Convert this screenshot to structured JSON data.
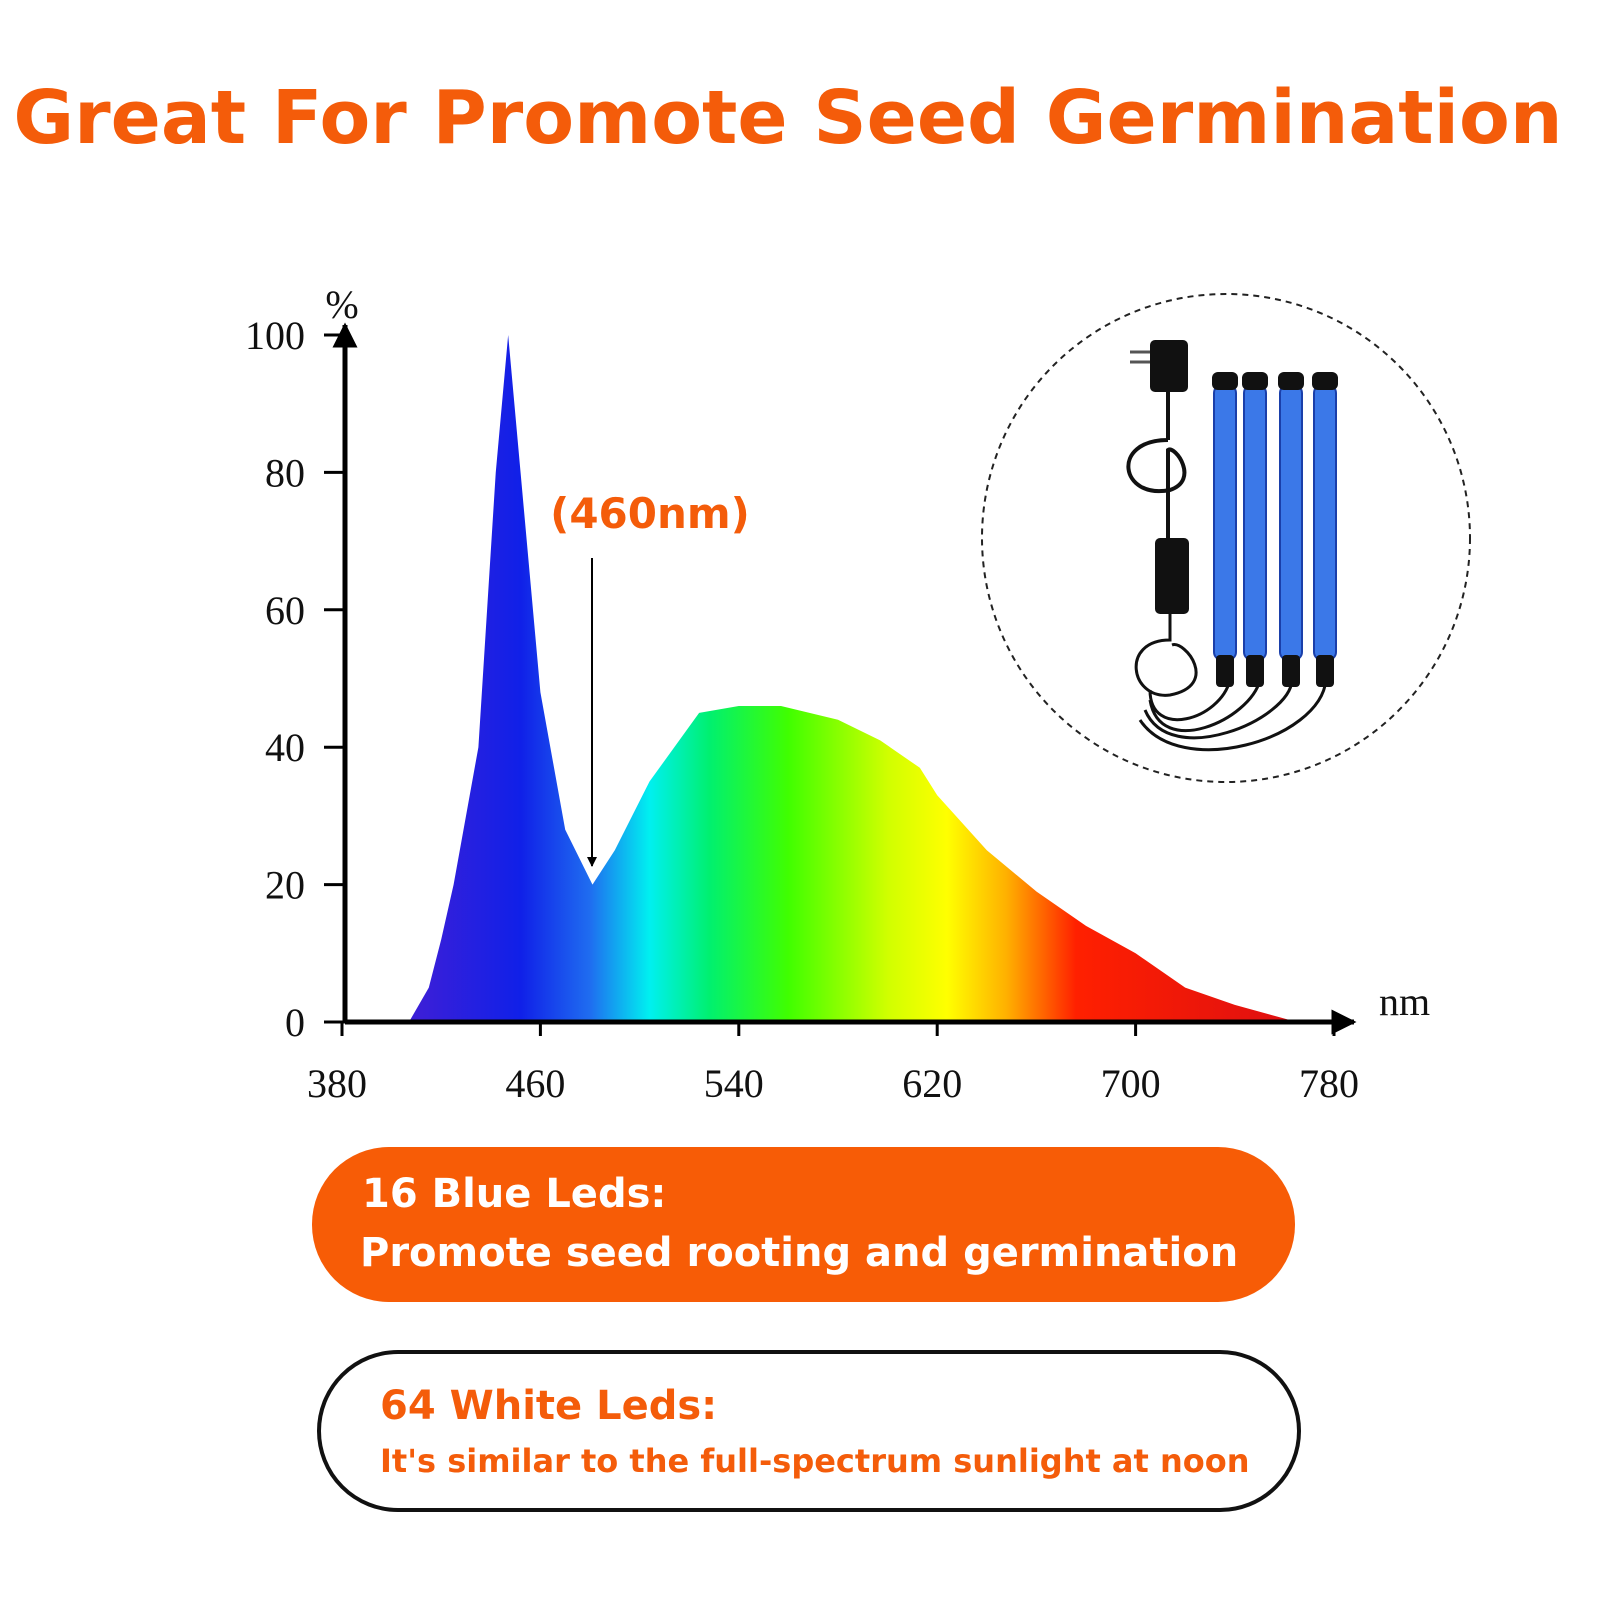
{
  "title": "Great For Promote Seed Germination",
  "chart_data": {
    "type": "area",
    "x": [
      407,
      415,
      420,
      425,
      435,
      442,
      447,
      452,
      460,
      470,
      481,
      490,
      504,
      524,
      540,
      557,
      580,
      597,
      613,
      620,
      640,
      660,
      680,
      700,
      720,
      740,
      765
    ],
    "values": [
      0,
      5,
      12,
      20,
      40,
      80,
      100,
      80,
      48,
      28,
      20,
      25,
      35,
      45,
      46,
      46,
      44,
      41,
      37,
      33,
      25,
      19,
      14,
      10,
      5,
      2.5,
      0
    ],
    "xlim": [
      380,
      780
    ],
    "xticks": [
      380,
      460,
      540,
      620,
      700,
      780
    ],
    "ylim": [
      0,
      100
    ],
    "yticks": [
      0,
      20,
      40,
      60,
      80,
      100
    ],
    "xlabel": "nm",
    "ylabel": "%",
    "annotation": "(460nm)"
  },
  "boxes": [
    {
      "title": "16 Blue Leds:",
      "text": "Promote seed rooting and germination"
    },
    {
      "title": "64 White Leds:",
      "text": "It's similar to the full-spectrum sunlight at noon"
    }
  ]
}
